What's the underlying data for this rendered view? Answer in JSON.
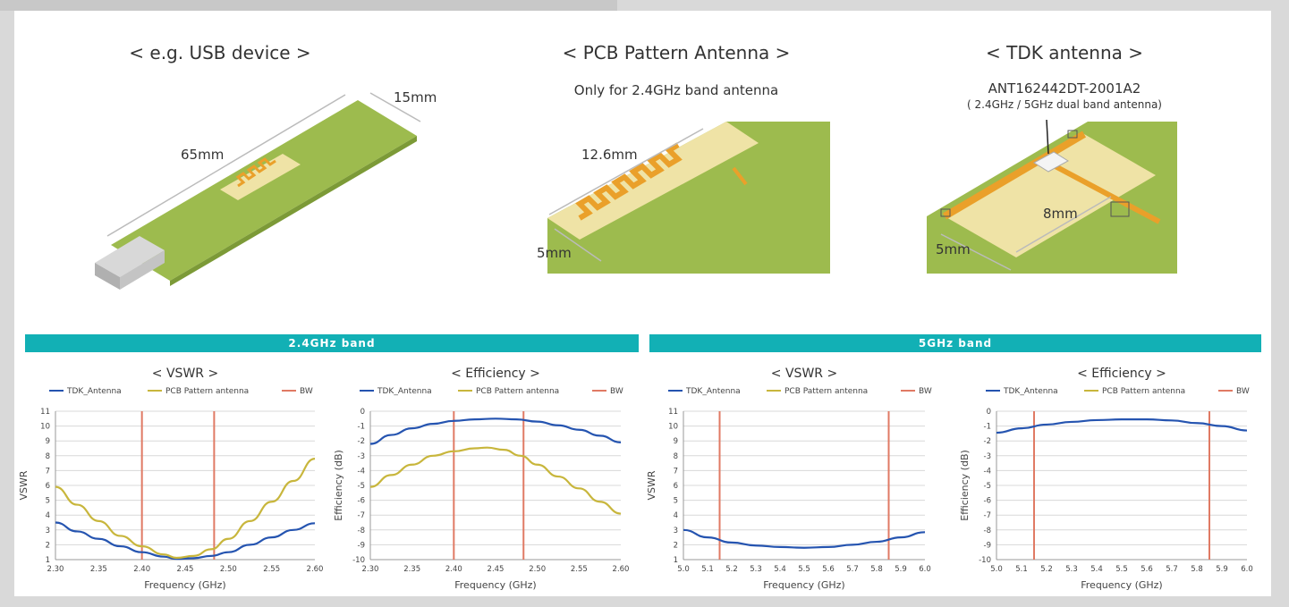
{
  "illustrations": {
    "usb": {
      "title": "< e.g. USB device >",
      "length_label": "65mm",
      "width_label": "15mm"
    },
    "pcb": {
      "title": "< PCB Pattern Antenna >",
      "subtitle": "Only for 2.4GHz band antenna",
      "length_label": "12.6mm",
      "width_label": "5mm"
    },
    "tdk": {
      "title": "< TDK antenna >",
      "part_number": "ANT162442DT-2001A2",
      "note": "( 2.4GHz / 5GHz dual band antenna)",
      "length_label": "8mm",
      "width_label": "5mm"
    }
  },
  "bands": {
    "band24": "2.4GHz band",
    "band5": "5GHz band"
  },
  "colors": {
    "tdk": "#2554b0",
    "pcb": "#c8b63c",
    "bw": "#e07a64",
    "band_bar": "#12b0b5",
    "board_green": "#9dbb4e",
    "pad_cream": "#efe3a6",
    "trace_orange": "#eaa02a"
  },
  "legend": {
    "tdk": "TDK_Antenna",
    "pcb": "PCB Pattern antenna",
    "bw": "BW"
  },
  "chart_data": [
    {
      "type": "line",
      "title": "< VSWR >",
      "xlabel": "Frequency (GHz)",
      "ylabel": "VSWR",
      "xlim": [
        2.3,
        2.6
      ],
      "ylim": [
        1,
        11
      ],
      "xticks": [
        2.3,
        2.35,
        2.4,
        2.45,
        2.5,
        2.55,
        2.6
      ],
      "xtick_labels": [
        "2.30",
        "2.35",
        "2.40",
        "2.45",
        "2.50",
        "2.55",
        "2.60"
      ],
      "yticks": [
        1,
        2,
        3,
        4,
        5,
        6,
        7,
        8,
        9,
        10,
        11
      ],
      "ytick_labels": [
        "1",
        "2",
        "3",
        "4",
        "5",
        "6",
        "7",
        "8",
        "9",
        "10",
        "11"
      ],
      "bw_lines": [
        2.4,
        2.4835
      ],
      "series": [
        {
          "name": "TDK_Antenna",
          "color_key": "tdk",
          "x": [
            2.3,
            2.325,
            2.35,
            2.375,
            2.4,
            2.425,
            2.44,
            2.46,
            2.48,
            2.5,
            2.525,
            2.55,
            2.575,
            2.6
          ],
          "y": [
            3.5,
            2.9,
            2.4,
            1.9,
            1.5,
            1.2,
            1.05,
            1.1,
            1.25,
            1.5,
            2.0,
            2.5,
            3.0,
            3.45
          ]
        },
        {
          "name": "PCB Pattern antenna",
          "color_key": "pcb",
          "x": [
            2.3,
            2.325,
            2.35,
            2.375,
            2.4,
            2.425,
            2.44,
            2.46,
            2.48,
            2.5,
            2.525,
            2.55,
            2.575,
            2.6
          ],
          "y": [
            5.9,
            4.7,
            3.6,
            2.6,
            1.9,
            1.35,
            1.12,
            1.25,
            1.7,
            2.4,
            3.6,
            4.9,
            6.3,
            7.8
          ]
        }
      ]
    },
    {
      "type": "line",
      "title": "< Efficiency >",
      "xlabel": "Frequency (GHz)",
      "ylabel": "Efficiency (dB)",
      "xlim": [
        2.3,
        2.6
      ],
      "ylim": [
        -10,
        0
      ],
      "xticks": [
        2.3,
        2.35,
        2.4,
        2.45,
        2.5,
        2.55,
        2.6
      ],
      "xtick_labels": [
        "2.30",
        "2.35",
        "2.40",
        "2.45",
        "2.50",
        "2.55",
        "2.60"
      ],
      "yticks": [
        0,
        -1,
        -2,
        -3,
        -4,
        -5,
        -6,
        -7,
        -8,
        -9,
        -10
      ],
      "ytick_labels": [
        "0",
        "-1",
        "-2",
        "-3",
        "-4",
        "-5",
        "-6",
        "-7",
        "-8",
        "-9",
        "-10"
      ],
      "bw_lines": [
        2.4,
        2.4835
      ],
      "series": [
        {
          "name": "TDK_Antenna",
          "color_key": "tdk",
          "x": [
            2.3,
            2.325,
            2.35,
            2.375,
            2.4,
            2.425,
            2.45,
            2.475,
            2.5,
            2.525,
            2.55,
            2.575,
            2.6
          ],
          "y": [
            -2.2,
            -1.6,
            -1.15,
            -0.85,
            -0.65,
            -0.55,
            -0.5,
            -0.55,
            -0.7,
            -0.95,
            -1.25,
            -1.65,
            -2.1
          ]
        },
        {
          "name": "PCB Pattern antenna",
          "color_key": "pcb",
          "x": [
            2.3,
            2.325,
            2.35,
            2.375,
            2.4,
            2.425,
            2.44,
            2.46,
            2.48,
            2.5,
            2.525,
            2.55,
            2.575,
            2.6
          ],
          "y": [
            -5.1,
            -4.3,
            -3.6,
            -3.0,
            -2.7,
            -2.5,
            -2.45,
            -2.6,
            -3.0,
            -3.6,
            -4.4,
            -5.2,
            -6.1,
            -6.9
          ]
        }
      ]
    },
    {
      "type": "line",
      "title": "< VSWR >",
      "xlabel": "Frequency (GHz)",
      "ylabel": "VSWR",
      "xlim": [
        5.0,
        6.0
      ],
      "ylim": [
        1,
        11
      ],
      "xticks": [
        5.0,
        5.1,
        5.2,
        5.3,
        5.4,
        5.5,
        5.6,
        5.7,
        5.8,
        5.9,
        6.0
      ],
      "xtick_labels": [
        "5.0",
        "5.1",
        "5.2",
        "5.3",
        "5.4",
        "5.5",
        "5.6",
        "5.7",
        "5.8",
        "5.9",
        "6.0"
      ],
      "yticks": [
        1,
        2,
        3,
        4,
        5,
        6,
        7,
        8,
        9,
        10,
        11
      ],
      "ytick_labels": [
        "1",
        "2",
        "3",
        "4",
        "5",
        "6",
        "7",
        "8",
        "9",
        "10",
        "11"
      ],
      "bw_lines": [
        5.15,
        5.85
      ],
      "series": [
        {
          "name": "TDK_Antenna",
          "color_key": "tdk",
          "x": [
            5.0,
            5.1,
            5.2,
            5.3,
            5.4,
            5.5,
            5.6,
            5.7,
            5.8,
            5.9,
            6.0
          ],
          "y": [
            3.0,
            2.5,
            2.15,
            1.95,
            1.85,
            1.8,
            1.85,
            2.0,
            2.2,
            2.5,
            2.85
          ]
        }
      ]
    },
    {
      "type": "line",
      "title": "< Efficiency >",
      "xlabel": "Frequency (GHz)",
      "ylabel": "Efficiency (dB)",
      "xlim": [
        5.0,
        6.0
      ],
      "ylim": [
        -10,
        0
      ],
      "xticks": [
        5.0,
        5.1,
        5.2,
        5.3,
        5.4,
        5.5,
        5.6,
        5.7,
        5.8,
        5.9,
        6.0
      ],
      "xtick_labels": [
        "5.0",
        "5.1",
        "5.2",
        "5.3",
        "5.4",
        "5.5",
        "5.6",
        "5.7",
        "5.8",
        "5.9",
        "6.0"
      ],
      "yticks": [
        0,
        -1,
        -2,
        -3,
        -4,
        -5,
        -6,
        -7,
        -8,
        -9,
        -10
      ],
      "ytick_labels": [
        "0",
        "-1",
        "-2",
        "-3",
        "-4",
        "-5",
        "-6",
        "-7",
        "-8",
        "-9",
        "-10"
      ],
      "bw_lines": [
        5.15,
        5.85
      ],
      "series": [
        {
          "name": "TDK_Antenna",
          "color_key": "tdk",
          "x": [
            5.0,
            5.1,
            5.2,
            5.3,
            5.4,
            5.5,
            5.6,
            5.7,
            5.8,
            5.9,
            6.0
          ],
          "y": [
            -1.45,
            -1.15,
            -0.9,
            -0.72,
            -0.6,
            -0.55,
            -0.55,
            -0.62,
            -0.8,
            -1.0,
            -1.3
          ]
        }
      ]
    }
  ]
}
